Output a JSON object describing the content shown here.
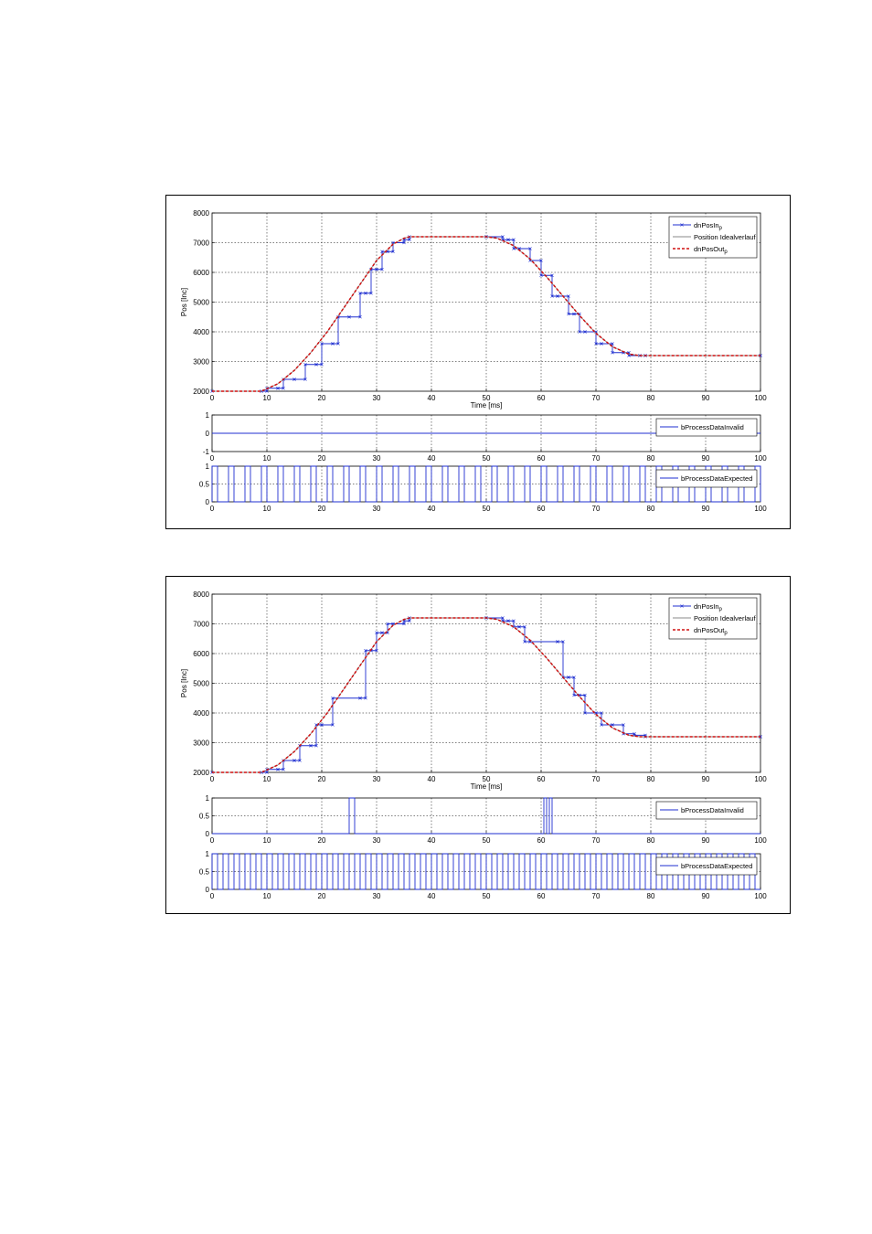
{
  "figures": [
    {
      "chart_data": [
        {
          "type": "line",
          "xlabel": "Time [ms]",
          "ylabel": "Pos [Inc]",
          "xlim": [
            0,
            100
          ],
          "ylim": [
            2000,
            8000
          ],
          "xticks": [
            0,
            10,
            20,
            30,
            40,
            50,
            60,
            70,
            80,
            90,
            100
          ],
          "yticks": [
            2000,
            3000,
            4000,
            5000,
            6000,
            7000,
            8000
          ],
          "grid": true,
          "legend_position": "top-right",
          "series": [
            {
              "name": "dnPosIn",
              "subscript": "p",
              "color": "#1f2fd0",
              "style": "solid-x",
              "x": [
                0,
                9,
                10,
                12,
                13,
                15,
                17,
                19,
                20,
                22,
                23,
                25,
                27,
                28,
                29,
                30,
                31,
                32,
                33,
                35,
                36,
                50,
                53,
                54,
                55,
                56,
                58,
                60,
                62,
                63,
                65,
                66,
                67,
                68,
                70,
                71,
                73,
                75,
                76,
                78,
                79,
                100
              ],
              "y": [
                2000,
                2000,
                2100,
                2100,
                2400,
                2400,
                2900,
                2900,
                3600,
                3600,
                4500,
                4500,
                5300,
                5300,
                6100,
                6100,
                6700,
                6700,
                7000,
                7100,
                7200,
                7200,
                7100,
                7100,
                6800,
                6800,
                6400,
                5900,
                5200,
                5200,
                4600,
                4600,
                4000,
                4000,
                3600,
                3600,
                3300,
                3300,
                3200,
                3200,
                3200,
                3200
              ],
              "step": true
            },
            {
              "name": "Position Idealverlauf",
              "color": "#8a8a8a",
              "style": "solid",
              "x": [
                0,
                9,
                12,
                15,
                18,
                21,
                24,
                27,
                30,
                33,
                35,
                36,
                50,
                52,
                55,
                58,
                61,
                64,
                67,
                70,
                73,
                76,
                78,
                79,
                100
              ],
              "y": [
                2000,
                2000,
                2250,
                2700,
                3300,
                4000,
                4800,
                5600,
                6400,
                6950,
                7150,
                7200,
                7200,
                7150,
                6900,
                6450,
                5850,
                5200,
                4550,
                3950,
                3500,
                3250,
                3200,
                3200,
                3200
              ]
            },
            {
              "name": "dnPosOut",
              "subscript": "p",
              "color": "#d01010",
              "style": "dashed",
              "x": [
                0,
                9,
                12,
                15,
                18,
                21,
                24,
                27,
                30,
                33,
                35,
                36,
                50,
                52,
                55,
                58,
                61,
                64,
                67,
                70,
                73,
                76,
                78,
                79,
                100
              ],
              "y": [
                2000,
                2000,
                2250,
                2700,
                3300,
                4000,
                4800,
                5600,
                6400,
                6950,
                7150,
                7200,
                7200,
                7150,
                6900,
                6450,
                5850,
                5200,
                4550,
                3950,
                3500,
                3250,
                3200,
                3200,
                3200
              ]
            }
          ]
        },
        {
          "type": "line",
          "xlim": [
            0,
            100
          ],
          "ylim": [
            -1,
            1
          ],
          "xticks": [
            0,
            10,
            20,
            30,
            40,
            50,
            60,
            70,
            80,
            90,
            100
          ],
          "yticks": [
            -1,
            0,
            1
          ],
          "grid": true,
          "legend_position": "top-right",
          "series": [
            {
              "name": "bProcessDataInvalid",
              "color": "#1f2fd0",
              "style": "solid",
              "x": [
                0,
                100
              ],
              "y": [
                0,
                0
              ]
            }
          ]
        },
        {
          "type": "line",
          "xlim": [
            0,
            100
          ],
          "ylim": [
            0,
            1
          ],
          "xticks": [
            0,
            10,
            20,
            30,
            40,
            50,
            60,
            70,
            80,
            90,
            100
          ],
          "yticks": [
            0,
            0.5,
            1
          ],
          "grid": true,
          "legend_position": "top-right",
          "series": [
            {
              "name": "bProcessDataExpected",
              "color": "#1f2fd0",
              "style": "pulses",
              "period": 3,
              "width": 1,
              "start": 0,
              "end": 100
            }
          ]
        }
      ]
    },
    {
      "chart_data": [
        {
          "type": "line",
          "xlabel": "Time [ms]",
          "ylabel": "Pos [Inc]",
          "xlim": [
            0,
            100
          ],
          "ylim": [
            2000,
            8000
          ],
          "xticks": [
            0,
            10,
            20,
            30,
            40,
            50,
            60,
            70,
            80,
            90,
            100
          ],
          "yticks": [
            2000,
            3000,
            4000,
            5000,
            6000,
            7000,
            8000
          ],
          "grid": true,
          "legend_position": "top-right",
          "series": [
            {
              "name": "dnPosIn",
              "subscript": "p",
              "color": "#1f2fd0",
              "style": "solid-x",
              "x": [
                0,
                9,
                10,
                12,
                13,
                15,
                16,
                18,
                19,
                20,
                22,
                27,
                28,
                29,
                30,
                31,
                32,
                33,
                35,
                36,
                50,
                53,
                54,
                55,
                56,
                57,
                58,
                63,
                64,
                65,
                66,
                67,
                68,
                70,
                71,
                73,
                75,
                77,
                79,
                100
              ],
              "y": [
                2000,
                2000,
                2100,
                2100,
                2400,
                2400,
                2900,
                2900,
                3600,
                3600,
                4500,
                4500,
                6100,
                6100,
                6700,
                6700,
                7000,
                7000,
                7100,
                7200,
                7200,
                7100,
                7100,
                6900,
                6900,
                6400,
                6400,
                6400,
                5200,
                5200,
                4600,
                4600,
                4000,
                4000,
                3600,
                3600,
                3300,
                3250,
                3200,
                3200
              ],
              "step": true
            },
            {
              "name": "Position Idealverlauf",
              "color": "#8a8a8a",
              "style": "solid",
              "x": [
                0,
                9,
                12,
                15,
                18,
                21,
                24,
                27,
                30,
                33,
                35,
                36,
                50,
                52,
                55,
                58,
                61,
                64,
                67,
                70,
                73,
                76,
                78,
                79,
                100
              ],
              "y": [
                2000,
                2000,
                2250,
                2700,
                3300,
                4000,
                4800,
                5600,
                6400,
                6950,
                7150,
                7200,
                7200,
                7150,
                6900,
                6450,
                5850,
                5200,
                4550,
                3950,
                3500,
                3250,
                3200,
                3200,
                3200
              ]
            },
            {
              "name": "dnPosOut",
              "subscript": "p",
              "color": "#d01010",
              "style": "dashed",
              "x": [
                0,
                9,
                12,
                15,
                18,
                21,
                24,
                27,
                30,
                33,
                35,
                36,
                50,
                52,
                55,
                58,
                61,
                64,
                67,
                70,
                73,
                76,
                78,
                79,
                100
              ],
              "y": [
                2000,
                2000,
                2250,
                2700,
                3300,
                4000,
                4800,
                5600,
                6400,
                6950,
                7150,
                7200,
                7200,
                7150,
                6900,
                6450,
                5850,
                5200,
                4550,
                3950,
                3500,
                3250,
                3200,
                3200,
                3200
              ]
            }
          ]
        },
        {
          "type": "line",
          "xlim": [
            0,
            100
          ],
          "ylim": [
            0,
            1
          ],
          "xticks": [
            0,
            10,
            20,
            30,
            40,
            50,
            60,
            70,
            80,
            90,
            100
          ],
          "yticks": [
            0,
            0.5,
            1
          ],
          "grid": true,
          "legend_position": "top-right",
          "series": [
            {
              "name": "bProcessDataInvalid",
              "color": "#1f2fd0",
              "style": "solid",
              "x": [
                0,
                25,
                25,
                26,
                26,
                60.5,
                60.5,
                61,
                61,
                61.5,
                61.5,
                62,
                62,
                100
              ],
              "y": [
                0,
                0,
                1,
                1,
                0,
                0,
                1,
                1,
                0,
                0,
                1,
                1,
                0,
                0
              ]
            }
          ]
        },
        {
          "type": "line",
          "xlim": [
            0,
            100
          ],
          "ylim": [
            0,
            1
          ],
          "xticks": [
            0,
            10,
            20,
            30,
            40,
            50,
            60,
            70,
            80,
            90,
            100
          ],
          "yticks": [
            0,
            0.5,
            1
          ],
          "grid": true,
          "legend_position": "top-right",
          "series": [
            {
              "name": "bProcessDataExpected",
              "color": "#1f2fd0",
              "style": "pulses",
              "period": 2,
              "width": 1,
              "start": 0,
              "end": 100
            }
          ]
        }
      ]
    }
  ]
}
